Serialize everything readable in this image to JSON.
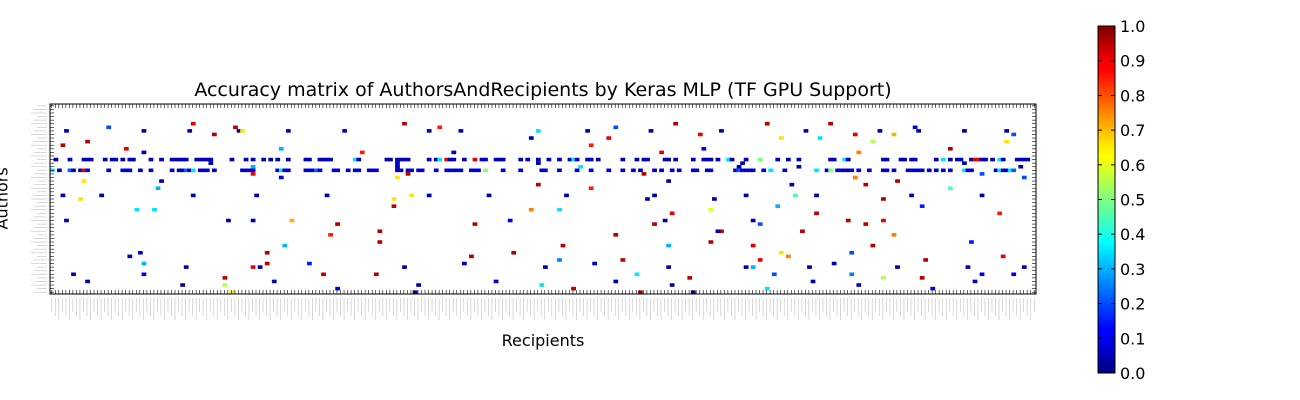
{
  "chart_data": {
    "type": "heatmap",
    "title": "Accuracy matrix of AuthorsAndRecipients by Keras MLP (TF GPU Support)",
    "xlabel": "Recipients",
    "ylabel": "Authors",
    "value_range": [
      0.0,
      1.0
    ],
    "colormap": "jet",
    "colorbar": {
      "ticks": [
        0.0,
        0.1,
        0.2,
        0.3,
        0.4,
        0.5,
        0.6,
        0.7,
        0.8,
        0.9,
        1.0
      ],
      "tick_labels": [
        "0.0",
        "0.1",
        "0.2",
        "0.3",
        "0.4",
        "0.5",
        "0.6",
        "0.7",
        "0.8",
        "0.9",
        "1.0"
      ],
      "placement": "right"
    },
    "grid": false,
    "x_categories_count": 280,
    "y_categories_count": 53,
    "dense_rows": [
      {
        "row": 15,
        "value": 0.05
      },
      {
        "row": 18,
        "value": 0.08
      }
    ],
    "cells": [
      [
        7,
        4,
        0.05
      ],
      [
        7,
        26,
        0.05
      ],
      [
        7,
        39,
        0.05
      ],
      [
        7,
        53,
        0.05
      ],
      [
        7,
        67,
        0.05
      ],
      [
        7,
        83,
        0.05
      ],
      [
        7,
        107,
        0.05
      ],
      [
        7,
        116,
        0.05
      ],
      [
        7,
        152,
        0.05
      ],
      [
        7,
        170,
        0.05
      ],
      [
        7,
        190,
        0.05
      ],
      [
        7,
        214,
        0.05
      ],
      [
        7,
        235,
        0.05
      ],
      [
        7,
        246,
        0.05
      ],
      [
        7,
        259,
        0.05
      ],
      [
        7,
        271,
        0.05
      ],
      [
        7,
        54,
        0.65
      ],
      [
        7,
        138,
        0.35
      ],
      [
        5,
        40,
        0.9
      ],
      [
        5,
        100,
        0.95
      ],
      [
        5,
        177,
        0.95
      ],
      [
        5,
        203,
        0.95
      ],
      [
        5,
        221,
        0.95
      ],
      [
        6,
        16,
        0.2
      ],
      [
        6,
        52,
        0.95
      ],
      [
        6,
        245,
        0.1
      ],
      [
        6,
        110,
        0.85
      ],
      [
        6,
        160,
        0.2
      ],
      [
        8,
        46,
        0.95
      ],
      [
        8,
        228,
        0.9
      ],
      [
        8,
        239,
        0.7
      ],
      [
        8,
        273,
        0.2
      ],
      [
        8,
        184,
        0.9
      ],
      [
        9,
        136,
        0.05
      ],
      [
        9,
        207,
        0.65
      ],
      [
        9,
        218,
        0.35
      ],
      [
        9,
        158,
        0.9
      ],
      [
        10,
        10,
        0.95
      ],
      [
        10,
        233,
        0.55
      ],
      [
        10,
        271,
        0.65
      ],
      [
        11,
        3,
        0.95
      ],
      [
        11,
        153,
        0.85
      ],
      [
        12,
        21,
        0.9
      ],
      [
        12,
        65,
        0.3
      ],
      [
        12,
        185,
        0.1
      ],
      [
        12,
        255,
        0.95
      ],
      [
        13,
        26,
        0.05
      ],
      [
        13,
        88,
        0.85
      ],
      [
        13,
        114,
        0.05
      ],
      [
        13,
        229,
        0.75
      ],
      [
        13,
        173,
        0.9
      ],
      [
        16,
        45,
        0.05
      ],
      [
        16,
        98,
        0.05
      ],
      [
        16,
        138,
        0.05
      ],
      [
        16,
        196,
        0.05
      ],
      [
        16,
        259,
        0.05
      ],
      [
        17,
        57,
        0.3
      ],
      [
        17,
        98,
        0.05
      ],
      [
        17,
        150,
        0.35
      ],
      [
        17,
        195,
        0.05
      ],
      [
        17,
        212,
        0.05
      ],
      [
        17,
        275,
        0.05
      ],
      [
        19,
        101,
        0.95
      ],
      [
        19,
        57,
        0.9
      ],
      [
        19,
        168,
        0.95
      ],
      [
        19,
        264,
        0.2
      ],
      [
        20,
        65,
        0.1
      ],
      [
        20,
        98,
        0.65
      ],
      [
        20,
        228,
        0.75
      ],
      [
        20,
        276,
        0.2
      ],
      [
        21,
        9,
        0.65
      ],
      [
        21,
        31,
        0.05
      ],
      [
        21,
        175,
        0.05
      ],
      [
        21,
        240,
        0.95
      ],
      [
        22,
        138,
        0.95
      ],
      [
        22,
        210,
        0.05
      ],
      [
        22,
        231,
        0.95
      ],
      [
        23,
        30,
        0.3
      ],
      [
        23,
        153,
        0.85
      ],
      [
        23,
        255,
        0.45
      ],
      [
        25,
        3,
        0.05
      ],
      [
        25,
        14,
        0.05
      ],
      [
        25,
        40,
        0.05
      ],
      [
        25,
        58,
        0.05
      ],
      [
        25,
        78,
        0.05
      ],
      [
        25,
        107,
        0.05
      ],
      [
        25,
        124,
        0.05
      ],
      [
        25,
        146,
        0.05
      ],
      [
        25,
        171,
        0.05
      ],
      [
        25,
        197,
        0.05
      ],
      [
        25,
        217,
        0.05
      ],
      [
        25,
        244,
        0.05
      ],
      [
        25,
        264,
        0.05
      ],
      [
        25,
        102,
        0.65
      ],
      [
        25,
        211,
        0.45
      ],
      [
        26,
        8,
        0.65
      ],
      [
        26,
        97,
        0.65
      ],
      [
        26,
        169,
        0.05
      ],
      [
        26,
        188,
        0.05
      ],
      [
        26,
        236,
        0.95
      ],
      [
        28,
        97,
        0.95
      ],
      [
        28,
        206,
        0.3
      ],
      [
        28,
        247,
        0.15
      ],
      [
        29,
        24,
        0.35
      ],
      [
        29,
        29,
        0.35
      ],
      [
        29,
        187,
        0.6
      ],
      [
        29,
        136,
        0.75
      ],
      [
        29,
        144,
        0.35
      ],
      [
        30,
        176,
        0.9
      ],
      [
        30,
        217,
        0.95
      ],
      [
        30,
        269,
        0.85
      ],
      [
        32,
        4,
        0.05
      ],
      [
        32,
        50,
        0.05
      ],
      [
        32,
        57,
        0.05
      ],
      [
        32,
        68,
        0.7
      ],
      [
        32,
        130,
        0.1
      ],
      [
        32,
        174,
        0.05
      ],
      [
        32,
        199,
        0.05
      ],
      [
        32,
        226,
        0.95
      ],
      [
        32,
        236,
        0.9
      ],
      [
        33,
        81,
        0.95
      ],
      [
        33,
        120,
        0.95
      ],
      [
        33,
        171,
        0.95
      ],
      [
        33,
        201,
        0.2
      ],
      [
        33,
        231,
        0.95
      ],
      [
        35,
        93,
        0.95
      ],
      [
        35,
        190,
        0.95
      ],
      [
        35,
        213,
        0.95
      ],
      [
        35,
        189,
        0.05
      ],
      [
        36,
        79,
        0.85
      ],
      [
        36,
        160,
        0.95
      ],
      [
        36,
        239,
        0.75
      ],
      [
        38,
        93,
        0.95
      ],
      [
        38,
        187,
        0.95
      ],
      [
        38,
        261,
        0.15
      ],
      [
        39,
        66,
        0.3
      ],
      [
        39,
        145,
        0.95
      ],
      [
        39,
        175,
        0.3
      ],
      [
        39,
        199,
        0.9
      ],
      [
        39,
        233,
        0.95
      ],
      [
        41,
        25,
        0.1
      ],
      [
        41,
        61,
        0.95
      ],
      [
        41,
        131,
        0.95
      ],
      [
        41,
        207,
        0.65
      ],
      [
        41,
        227,
        0.2
      ],
      [
        42,
        22,
        0.05
      ],
      [
        42,
        119,
        0.95
      ],
      [
        42,
        209,
        0.75
      ],
      [
        42,
        270,
        0.9
      ],
      [
        43,
        144,
        0.25
      ],
      [
        43,
        162,
        0.95
      ],
      [
        43,
        201,
        0.9
      ],
      [
        43,
        248,
        0.95
      ],
      [
        44,
        26,
        0.3
      ],
      [
        44,
        61,
        0.95
      ],
      [
        44,
        73,
        0.15
      ],
      [
        44,
        117,
        0.05
      ],
      [
        44,
        154,
        0.05
      ],
      [
        44,
        222,
        0.05
      ],
      [
        45,
        38,
        0.05
      ],
      [
        45,
        59,
        0.05
      ],
      [
        45,
        100,
        0.05
      ],
      [
        45,
        140,
        0.05
      ],
      [
        45,
        175,
        0.05
      ],
      [
        45,
        197,
        0.05
      ],
      [
        45,
        215,
        0.05
      ],
      [
        45,
        240,
        0.05
      ],
      [
        45,
        260,
        0.05
      ],
      [
        45,
        276,
        0.05
      ],
      [
        45,
        57,
        0.9
      ],
      [
        45,
        199,
        0.3
      ],
      [
        47,
        6,
        0.05
      ],
      [
        47,
        26,
        0.1
      ],
      [
        47,
        77,
        0.95
      ],
      [
        47,
        92,
        0.95
      ],
      [
        47,
        166,
        0.35
      ],
      [
        47,
        205,
        0.2
      ],
      [
        47,
        227,
        0.25
      ],
      [
        47,
        264,
        0.1
      ],
      [
        47,
        273,
        0.1
      ],
      [
        48,
        49,
        0.95
      ],
      [
        48,
        181,
        0.95
      ],
      [
        48,
        236,
        0.55
      ],
      [
        48,
        247,
        0.95
      ],
      [
        49,
        10,
        0.05
      ],
      [
        49,
        63,
        0.05
      ],
      [
        49,
        126,
        0.05
      ],
      [
        49,
        160,
        0.05
      ],
      [
        49,
        216,
        0.05
      ],
      [
        49,
        262,
        0.05
      ],
      [
        50,
        37,
        0.05
      ],
      [
        50,
        49,
        0.55
      ],
      [
        50,
        104,
        0.05
      ],
      [
        50,
        139,
        0.35
      ],
      [
        50,
        176,
        0.05
      ],
      [
        50,
        229,
        0.05
      ],
      [
        51,
        81,
        0.1
      ],
      [
        51,
        148,
        0.95
      ],
      [
        51,
        203,
        0.35
      ],
      [
        51,
        250,
        0.1
      ],
      [
        52,
        51,
        0.65
      ],
      [
        52,
        103,
        0.05
      ],
      [
        52,
        167,
        0.95
      ],
      [
        52,
        182,
        0.05
      ]
    ]
  }
}
